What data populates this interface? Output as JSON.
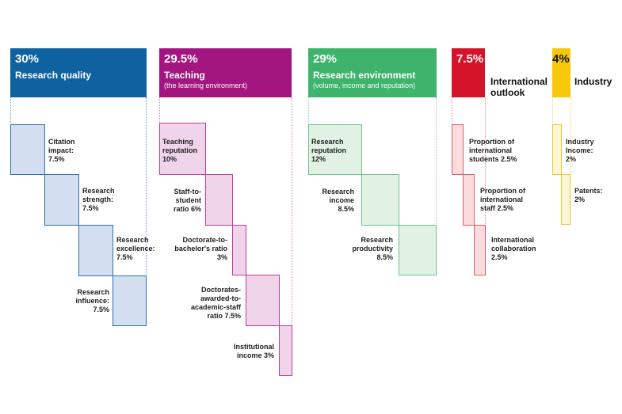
{
  "pillars": [
    {
      "percent": "30%",
      "title": "Research quality",
      "subtitle": "",
      "color": "#0e62a0",
      "metrics": [
        {
          "label": "Citation impact: 7.5%",
          "value": 7.5
        },
        {
          "label": "Research strength: 7.5%",
          "value": 7.5
        },
        {
          "label": "Research excellence: 7.5%",
          "value": 7.5
        },
        {
          "label": "Research influence: 7.5%",
          "value": 7.5
        }
      ]
    },
    {
      "percent": "29.5%",
      "title": "Teaching",
      "subtitle": "(the learning environment)",
      "color": "#a3157f",
      "metrics": [
        {
          "label": "Teaching reputation 10%",
          "value": 10
        },
        {
          "label": "Staff-to-student ratio 6%",
          "value": 6
        },
        {
          "label": "Doctorate-to-bachelor's ratio 3%",
          "value": 3
        },
        {
          "label": "Doctorates-awarded-to-academic-staff ratio 7.5%",
          "value": 7.5
        },
        {
          "label": "Institutional income 3%",
          "value": 3
        }
      ]
    },
    {
      "percent": "29%",
      "title": "Research environment",
      "subtitle": "(volume, income and reputation)",
      "color": "#3db36b",
      "metrics": [
        {
          "label": "Research reputation 12%",
          "value": 12
        },
        {
          "label": "Research income 8.5%",
          "value": 8.5
        },
        {
          "label": "Research productivity 8.5%",
          "value": 8.5
        }
      ]
    },
    {
      "percent": "7.5%",
      "title": "International outlook",
      "subtitle": "",
      "color": "#d5142a",
      "metrics": [
        {
          "label": "Proportion of international students 2.5%",
          "value": 2.5
        },
        {
          "label": "Proportion of international staff 2.5%",
          "value": 2.5
        },
        {
          "label": "International collaboration 2.5%",
          "value": 2.5
        }
      ]
    },
    {
      "percent": "4%",
      "title": "Industry",
      "subtitle": "",
      "color": "#f7c70b",
      "metrics": [
        {
          "label": "Industry Income: 2%",
          "value": 2
        },
        {
          "label": "Patents: 2%",
          "value": 2
        }
      ]
    }
  ]
}
